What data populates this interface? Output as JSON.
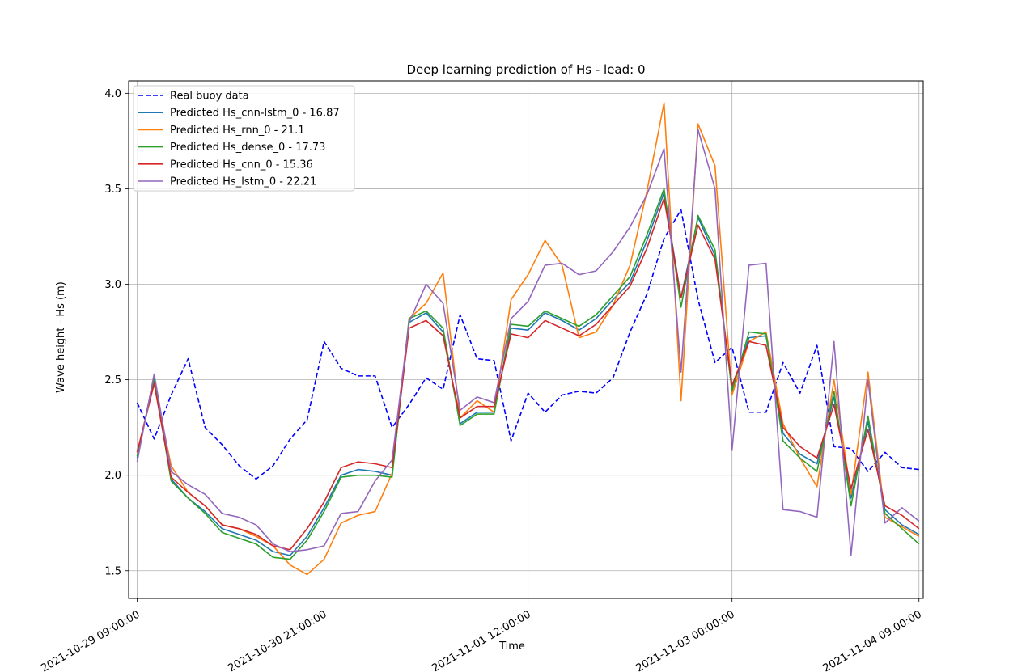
{
  "chart_data": {
    "type": "line",
    "title": "Deep learning prediction of Hs - lead: 0",
    "xlabel": "Time",
    "ylabel": "Wave height - Hs (m)",
    "xlim": [
      -0.5,
      46.25
    ],
    "ylim": [
      1.355,
      4.065
    ],
    "x_ticks": [
      {
        "x": 0,
        "label": "2021-10-29 09:00:00"
      },
      {
        "x": 11,
        "label": "2021-10-30 21:00:00"
      },
      {
        "x": 23,
        "label": "2021-11-01 12:00:00"
      },
      {
        "x": 35,
        "label": "2021-11-03 00:00:00"
      },
      {
        "x": 46,
        "label": "2021-11-04 09:00:00"
      }
    ],
    "y_ticks": [
      1.5,
      2.0,
      2.5,
      3.0,
      3.5,
      4.0
    ],
    "grid": true,
    "legend_position": "top-left",
    "series": [
      {
        "name": "Real buoy data",
        "color": "#0000ff",
        "dashed": true,
        "values": [
          2.38,
          2.19,
          2.42,
          2.61,
          2.25,
          2.16,
          2.05,
          1.98,
          2.05,
          2.19,
          2.29,
          2.7,
          2.56,
          2.52,
          2.52,
          2.25,
          2.37,
          2.51,
          2.45,
          2.84,
          2.61,
          2.6,
          2.18,
          2.43,
          2.33,
          2.42,
          2.44,
          2.43,
          2.51,
          2.75,
          2.95,
          3.24,
          3.39,
          2.92,
          2.59,
          2.67,
          2.33,
          2.33,
          2.59,
          2.43,
          2.68,
          2.15,
          2.14,
          2.02,
          2.12,
          2.04,
          2.03
        ]
      },
      {
        "name": "Predicted Hs_cnn-lstm_0 - 16.87",
        "color": "#1f77b4",
        "dashed": false,
        "values": [
          2.09,
          2.52,
          1.98,
          1.88,
          1.81,
          1.72,
          1.69,
          1.66,
          1.6,
          1.58,
          1.68,
          1.83,
          2.0,
          2.03,
          2.02,
          2.0,
          2.8,
          2.85,
          2.75,
          2.27,
          2.33,
          2.33,
          2.77,
          2.76,
          2.85,
          2.81,
          2.76,
          2.82,
          2.92,
          3.01,
          3.23,
          3.48,
          2.93,
          3.35,
          3.15,
          2.45,
          2.72,
          2.73,
          2.22,
          2.11,
          2.06,
          2.41,
          1.88,
          2.28,
          1.82,
          1.74,
          1.69
        ]
      },
      {
        "name": "Predicted Hs_rnn_0 - 21.1",
        "color": "#ff7f0e",
        "dashed": false,
        "values": [
          2.12,
          2.48,
          2.05,
          1.91,
          1.84,
          1.74,
          1.72,
          1.68,
          1.63,
          1.53,
          1.48,
          1.56,
          1.75,
          1.79,
          1.81,
          2.01,
          2.82,
          2.9,
          3.06,
          2.3,
          2.39,
          2.33,
          2.92,
          3.05,
          3.23,
          3.1,
          2.72,
          2.75,
          2.89,
          3.1,
          3.49,
          3.95,
          2.39,
          3.84,
          3.62,
          2.42,
          2.7,
          2.75,
          2.27,
          2.09,
          1.94,
          2.5,
          1.9,
          2.54,
          1.78,
          1.73,
          1.68
        ]
      },
      {
        "name": "Predicted Hs_dense_0 - 17.73",
        "color": "#2ca02c",
        "dashed": false,
        "values": [
          2.1,
          2.5,
          1.97,
          1.88,
          1.8,
          1.7,
          1.67,
          1.64,
          1.57,
          1.56,
          1.66,
          1.81,
          1.99,
          2.0,
          2.0,
          1.99,
          2.82,
          2.86,
          2.77,
          2.26,
          2.32,
          2.32,
          2.79,
          2.78,
          2.86,
          2.82,
          2.78,
          2.84,
          2.94,
          3.04,
          3.26,
          3.5,
          2.88,
          3.36,
          3.18,
          2.44,
          2.75,
          2.74,
          2.18,
          2.09,
          2.02,
          2.44,
          1.84,
          2.31,
          1.8,
          1.72,
          1.64
        ]
      },
      {
        "name": "Predicted Hs_cnn_0 - 15.36",
        "color": "#d62728",
        "dashed": false,
        "values": [
          2.12,
          2.48,
          1.99,
          1.91,
          1.84,
          1.74,
          1.72,
          1.69,
          1.63,
          1.61,
          1.72,
          1.86,
          2.04,
          2.07,
          2.06,
          2.04,
          2.77,
          2.81,
          2.73,
          2.3,
          2.36,
          2.36,
          2.74,
          2.72,
          2.81,
          2.77,
          2.73,
          2.79,
          2.89,
          2.99,
          3.19,
          3.45,
          2.93,
          3.31,
          3.13,
          2.47,
          2.7,
          2.68,
          2.25,
          2.15,
          2.09,
          2.37,
          1.93,
          2.24,
          1.84,
          1.79,
          1.72
        ]
      },
      {
        "name": "Predicted Hs_lstm_0 - 22.21",
        "color": "#9467bd",
        "dashed": false,
        "values": [
          2.07,
          2.53,
          2.02,
          1.95,
          1.9,
          1.8,
          1.78,
          1.74,
          1.64,
          1.6,
          1.61,
          1.63,
          1.8,
          1.81,
          1.97,
          2.08,
          2.8,
          3.0,
          2.9,
          2.34,
          2.41,
          2.38,
          2.82,
          2.91,
          3.1,
          3.11,
          3.05,
          3.07,
          3.17,
          3.3,
          3.47,
          3.71,
          2.54,
          3.81,
          3.5,
          2.13,
          3.1,
          3.11,
          1.82,
          1.81,
          1.78,
          2.7,
          1.58,
          2.5,
          1.75,
          1.83,
          1.76
        ]
      }
    ]
  }
}
